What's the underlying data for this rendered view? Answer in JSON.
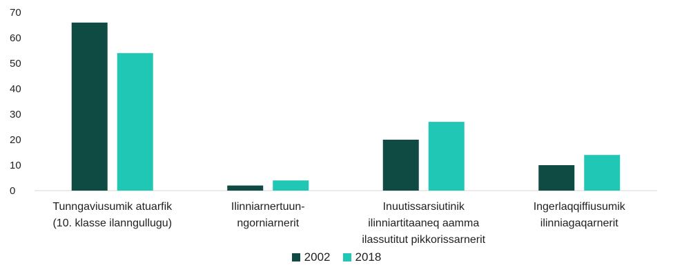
{
  "chart_data": {
    "type": "bar",
    "categories": [
      [
        "Tunngaviusumik atuarfik",
        "(10. klasse ilanngullugu)"
      ],
      [
        "Ilinniarnertuun-",
        "ngorniarnerit"
      ],
      [
        "Inuutissarsiutinik",
        "ilinniartitaaneq aamma",
        "ilassutitut pikkorissarnerit"
      ],
      [
        "Ingerlaqqiffiusumik",
        "ilinniagaqarnerit"
      ]
    ],
    "series": [
      {
        "name": "2002",
        "color": "#0f4b43",
        "values": [
          66,
          2,
          20,
          10
        ]
      },
      {
        "name": "2018",
        "color": "#20c7b5",
        "values": [
          54,
          4,
          27,
          14
        ]
      }
    ],
    "ylim": [
      0,
      70
    ],
    "yticks": [
      0,
      10,
      20,
      30,
      40,
      50,
      60,
      70
    ],
    "grid": false,
    "legend_position": "bottom-center"
  }
}
